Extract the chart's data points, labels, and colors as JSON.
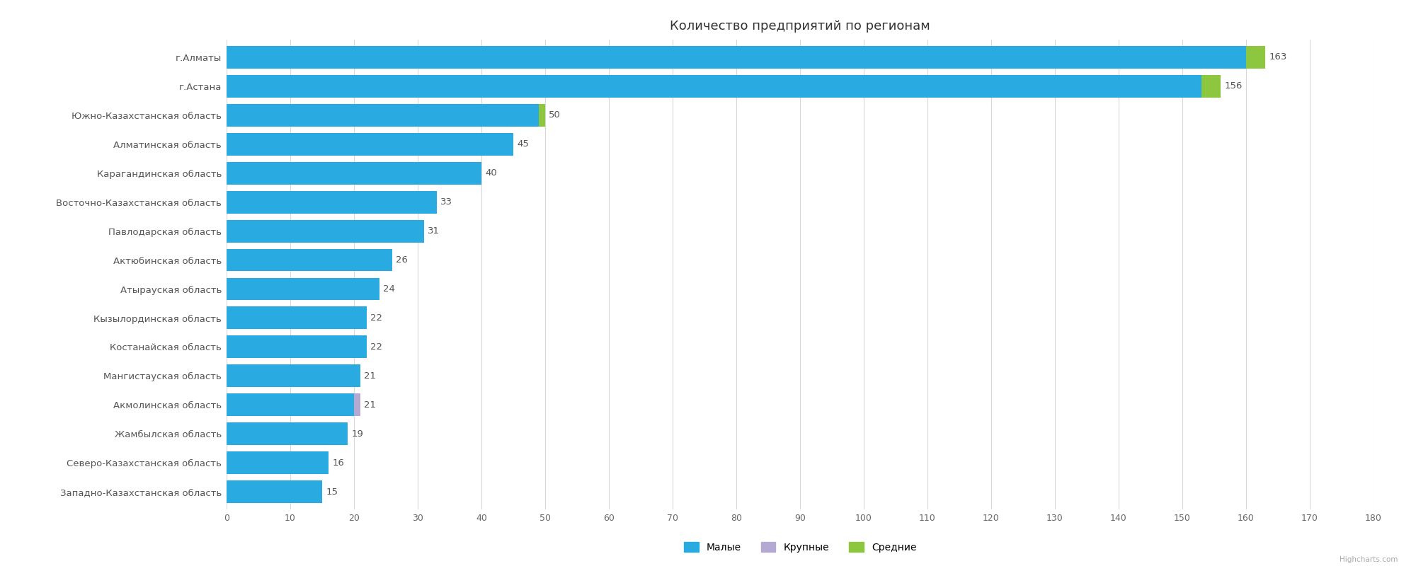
{
  "title": "Количество предприятий по регионам",
  "categories": [
    "г.Алматы",
    "г.Астана",
    "Южно-Казахстанская область",
    "Алматинская область",
    "Карагандинская область",
    "Восточно-Казахстанская область",
    "Павлодарская область",
    "Актюбинская область",
    "Атырауская область",
    "Кызылординская область",
    "Костанайская область",
    "Мангистауская область",
    "Акмолинская область",
    "Жамбылская область",
    "Северо-Казахстанская область",
    "Западно-Казахстанская область"
  ],
  "малые": [
    160,
    153,
    49,
    45,
    40,
    33,
    31,
    26,
    24,
    22,
    22,
    21,
    20,
    19,
    16,
    15
  ],
  "крупные": [
    0,
    0,
    0,
    0,
    0,
    0,
    0,
    0,
    0,
    0,
    0,
    0,
    1,
    0,
    0,
    0
  ],
  "средние": [
    3,
    3,
    1,
    0,
    0,
    0,
    0,
    0,
    0,
    0,
    0,
    0,
    0,
    0,
    0,
    0
  ],
  "totals": [
    163,
    156,
    50,
    45,
    40,
    33,
    31,
    26,
    24,
    22,
    22,
    21,
    21,
    19,
    16,
    15
  ],
  "color_малые": "#29abe2",
  "color_крупные": "#b3a9d3",
  "color_средние": "#8dc63f",
  "background_color": "#ffffff",
  "grid_color": "#d8d8d8",
  "xlim": [
    0,
    180
  ],
  "xticks": [
    0,
    10,
    20,
    30,
    40,
    50,
    60,
    70,
    80,
    90,
    100,
    110,
    120,
    130,
    140,
    150,
    160,
    170,
    180
  ],
  "legend_labels": [
    "Малые",
    "Крупные",
    "Средние"
  ],
  "watermark": "Highcharts.com",
  "bar_height": 0.78,
  "label_fontsize": 9.5,
  "title_fontsize": 13,
  "tick_fontsize": 9,
  "ytick_fontsize": 9.5
}
